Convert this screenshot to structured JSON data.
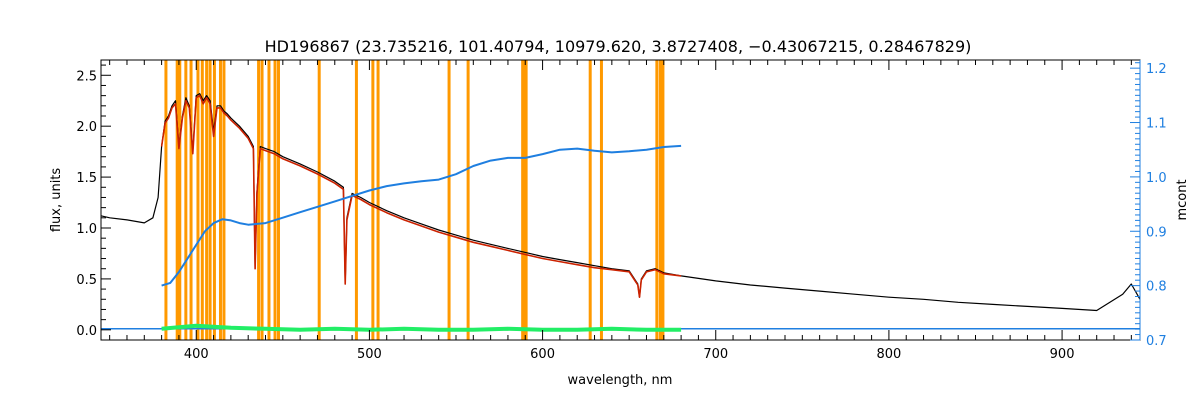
{
  "chart_data": {
    "type": "line",
    "title": "HD196867    (23.735216, 101.40794, 10979.620, 3.8727408, −0.43067215, 0.28467829)",
    "xlabel": "wavelength, nm",
    "ylabel": "flux, units",
    "y2label": "mcont",
    "xlim": [
      345,
      945
    ],
    "ylim": [
      -0.1,
      2.65
    ],
    "y2lim": [
      0.7,
      1.215
    ],
    "x_ticks": [
      400,
      500,
      600,
      700,
      800,
      900
    ],
    "y_ticks": [
      "0.0",
      "0.5",
      "1.0",
      "1.5",
      "2.0",
      "2.5"
    ],
    "y2_ticks": [
      "0.7",
      "0.8",
      "0.9",
      "1.0",
      "1.1",
      "1.2"
    ],
    "grid": false,
    "colors": {
      "observed": "#000000",
      "model": "#cc2200",
      "residual": "#22ee66",
      "mcont": "#1f7fe0",
      "masks": "#ff9900",
      "axis_right": "#1f7fe0"
    },
    "mask_lines_nm": [
      382.5,
      389,
      390.5,
      394,
      397,
      401,
      403.5,
      406,
      408,
      410.5,
      414,
      416,
      436,
      438,
      442,
      445.5,
      447.5,
      471,
      492.5,
      502,
      505,
      546,
      557,
      588.5,
      589.5,
      590.5,
      627.5,
      634,
      666,
      668,
      669.5
    ],
    "series": [
      {
        "key": "observed",
        "x": [
          345,
          350,
          360,
          370,
          375,
          378,
          380,
          382,
          384,
          386,
          388,
          390,
          392,
          394,
          396,
          398,
          400,
          402,
          404,
          406,
          408,
          410,
          412,
          414,
          416,
          418,
          420,
          425,
          430,
          433,
          434,
          435,
          437,
          440,
          445,
          450,
          460,
          470,
          480,
          485,
          486,
          487,
          490,
          495,
          500,
          510,
          520,
          530,
          540,
          550,
          560,
          570,
          580,
          590,
          600,
          610,
          620,
          630,
          640,
          650,
          655,
          656,
          657,
          660,
          665,
          670,
          680,
          700,
          720,
          740,
          760,
          780,
          800,
          820,
          840,
          860,
          880,
          900,
          920,
          935,
          940,
          945
        ],
        "y": [
          1.12,
          1.1,
          1.08,
          1.05,
          1.1,
          1.3,
          1.8,
          2.05,
          2.1,
          2.2,
          2.25,
          1.8,
          2.1,
          2.28,
          2.2,
          1.75,
          2.3,
          2.32,
          2.25,
          2.3,
          2.25,
          1.95,
          2.2,
          2.2,
          2.15,
          2.12,
          2.08,
          2.0,
          1.9,
          1.8,
          0.6,
          1.35,
          1.8,
          1.78,
          1.75,
          1.7,
          1.63,
          1.55,
          1.46,
          1.4,
          0.45,
          1.1,
          1.34,
          1.3,
          1.25,
          1.17,
          1.1,
          1.04,
          0.98,
          0.93,
          0.88,
          0.84,
          0.8,
          0.76,
          0.72,
          0.69,
          0.66,
          0.63,
          0.6,
          0.58,
          0.45,
          0.32,
          0.5,
          0.58,
          0.6,
          0.56,
          0.53,
          0.48,
          0.44,
          0.41,
          0.38,
          0.35,
          0.32,
          0.3,
          0.27,
          0.25,
          0.23,
          0.21,
          0.19,
          0.35,
          0.45,
          0.3
        ]
      },
      {
        "key": "model",
        "x": [
          380,
          382,
          384,
          386,
          388,
          390,
          392,
          394,
          396,
          398,
          400,
          402,
          404,
          406,
          408,
          410,
          412,
          414,
          416,
          418,
          420,
          425,
          430,
          433,
          434,
          435,
          437,
          440,
          445,
          450,
          460,
          470,
          480,
          485,
          486,
          487,
          490,
          495,
          500,
          510,
          520,
          530,
          540,
          550,
          560,
          570,
          580,
          590,
          600,
          610,
          620,
          630,
          640,
          650,
          655,
          656,
          657,
          660,
          665,
          670,
          680
        ],
        "y": [
          1.8,
          2.03,
          2.08,
          2.18,
          2.22,
          1.78,
          2.08,
          2.25,
          2.18,
          1.73,
          2.28,
          2.3,
          2.22,
          2.28,
          2.22,
          1.9,
          2.18,
          2.18,
          2.13,
          2.1,
          2.06,
          1.98,
          1.88,
          1.78,
          0.6,
          1.33,
          1.78,
          1.76,
          1.73,
          1.68,
          1.61,
          1.53,
          1.44,
          1.38,
          0.45,
          1.08,
          1.32,
          1.28,
          1.23,
          1.15,
          1.08,
          1.02,
          0.96,
          0.91,
          0.86,
          0.82,
          0.78,
          0.74,
          0.7,
          0.67,
          0.64,
          0.61,
          0.59,
          0.57,
          0.44,
          0.32,
          0.49,
          0.57,
          0.59,
          0.55,
          0.53
        ]
      },
      {
        "key": "residual",
        "x": [
          380,
          400,
          420,
          440,
          460,
          480,
          500,
          520,
          540,
          560,
          580,
          600,
          620,
          640,
          660,
          680
        ],
        "y": [
          0.01,
          0.04,
          0.02,
          0.01,
          0.0,
          0.01,
          0.0,
          0.01,
          0.0,
          0.0,
          0.01,
          0.0,
          0.0,
          0.01,
          0.0,
          0.0
        ]
      },
      {
        "key": "zero_line",
        "x": [
          345,
          945
        ],
        "y": [
          0.01,
          0.01
        ]
      },
      {
        "key": "mcont",
        "axis": "right",
        "x": [
          380,
          385,
          390,
          395,
          400,
          405,
          410,
          415,
          420,
          425,
          430,
          440,
          450,
          460,
          470,
          480,
          490,
          500,
          510,
          520,
          530,
          540,
          550,
          560,
          570,
          580,
          590,
          600,
          610,
          620,
          630,
          640,
          650,
          660,
          670,
          680
        ],
        "y": [
          0.8,
          0.805,
          0.825,
          0.85,
          0.875,
          0.9,
          0.915,
          0.922,
          0.92,
          0.915,
          0.912,
          0.915,
          0.925,
          0.935,
          0.945,
          0.955,
          0.965,
          0.975,
          0.983,
          0.988,
          0.992,
          0.995,
          1.005,
          1.02,
          1.03,
          1.035,
          1.035,
          1.042,
          1.05,
          1.052,
          1.048,
          1.045,
          1.047,
          1.05,
          1.055,
          1.057
        ]
      }
    ]
  }
}
